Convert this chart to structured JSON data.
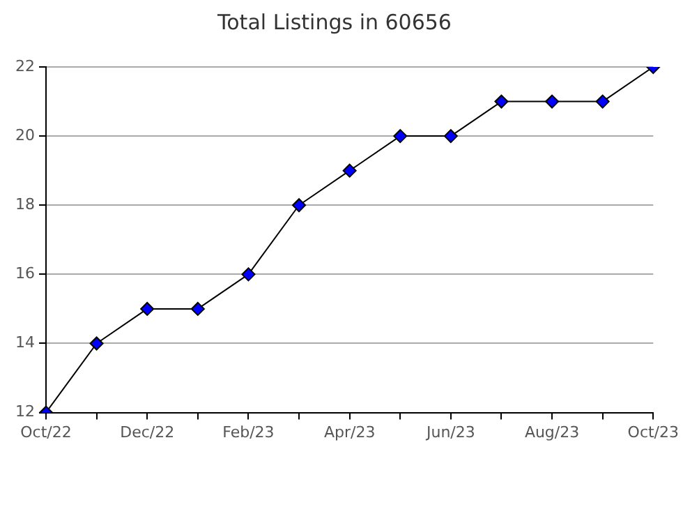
{
  "chart_data": {
    "type": "line",
    "title": "Total Listings in 60656",
    "categories": [
      "Oct/22",
      null,
      "Dec/22",
      null,
      "Feb/23",
      null,
      "Apr/23",
      null,
      "Jun/23",
      null,
      "Aug/23",
      null,
      "Oct/23"
    ],
    "series": [
      {
        "color": "#0000ff",
        "values": [
          12,
          14,
          15,
          15,
          16,
          18,
          19,
          20,
          20,
          21,
          21,
          21,
          22
        ]
      }
    ],
    "ylim": [
      12,
      22
    ],
    "yticks": [
      12,
      14,
      16,
      18,
      20,
      22
    ],
    "grid": "y",
    "legend": false,
    "marker": "diamond",
    "line_style": "solid"
  }
}
